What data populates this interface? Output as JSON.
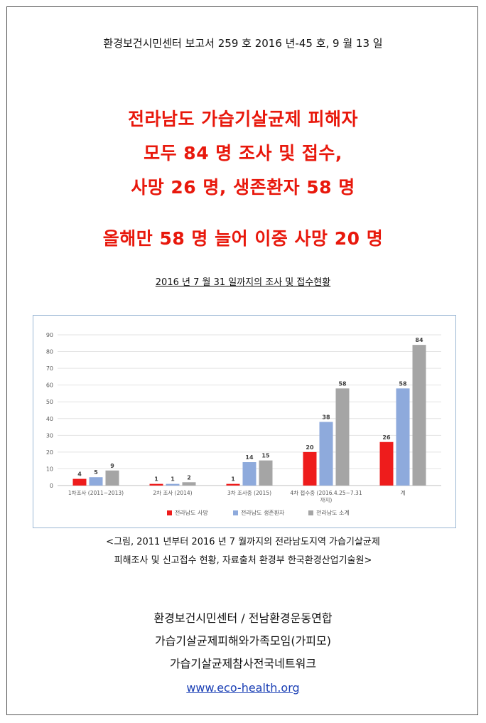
{
  "header": "환경보건시민센터  보고서  259 호  2016 년-45 호, 9 월 13 일",
  "headline": {
    "line1": "전라남도  가습기살균제  피해자",
    "line2": "모두  84 명  조사  및  접수,",
    "line3": "사망  26 명,  생존환자  58 명",
    "line4": "올해만  58 명  늘어  이중  사망 20 명"
  },
  "subhead": "2016 년 7 월 31 일까지의  조사  및  접수현황",
  "chart_data": {
    "type": "bar",
    "categories": [
      "1차조사 (2011~2013)",
      "2차 조사 (2014)",
      "3차 조사중 (2015)",
      "4차 접수중 (2016.4.25~7.31 까지)",
      "계"
    ],
    "category_lines": [
      [
        "1차조사 (2011~2013)"
      ],
      [
        "2차 조사 (2014)"
      ],
      [
        "3차 조사중 (2015)"
      ],
      [
        "4차 접수중 (2016.4.25~7.31",
        "까지)"
      ],
      [
        "계"
      ]
    ],
    "series": [
      {
        "name": "전라남도 사망",
        "color": "#ee1c1c",
        "values": [
          4,
          1,
          1,
          20,
          26
        ]
      },
      {
        "name": "전라남도 생존환자",
        "color": "#8eaadc",
        "values": [
          5,
          1,
          14,
          38,
          58
        ]
      },
      {
        "name": "전라남도 소계",
        "color": "#a5a5a5",
        "values": [
          9,
          2,
          15,
          58,
          84
        ]
      }
    ],
    "ylim": [
      0,
      90
    ],
    "yticks": [
      "0",
      "10",
      "20",
      "30",
      "40",
      "50",
      "60",
      "70",
      "80",
      "90"
    ],
    "grid": true,
    "legend": "bottom"
  },
  "caption": {
    "line1": "<그림, 2011 년부터  2016 년 7 월까지의  전라남도지역  가습기살균제",
    "line2": "피해조사  및  신고접수  현황,  자료출처  환경부  한국환경산업기술원>"
  },
  "footer": {
    "line1": "환경보건시민센터  /  전남환경운동연합",
    "line2": "가습기살균제피해와가족모임(가피모)",
    "line3": "가습기살균제참사전국네트워크"
  },
  "link": "www.eco-health.org"
}
